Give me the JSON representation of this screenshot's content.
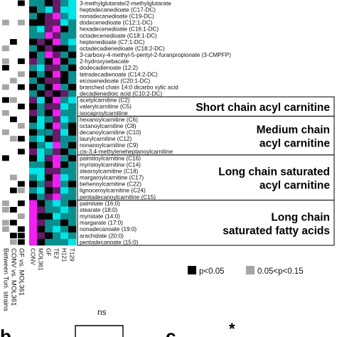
{
  "colors": {
    "cyan": "#00e5e5",
    "teal": "#0b8e8e",
    "black": "#050505",
    "purple": "#6a1a6a",
    "magenta": "#f21ff2",
    "sig_strong": "#000000",
    "sig_weak": "#a6a6a6"
  },
  "metabolites": [
    "3-methylglutarate/2-methylglutarate",
    "heptadecanedioate (C17-DC)",
    "nonadecanedioate (C19-DC)",
    "dodecenedioate (C12:1-DC)",
    "hexadecenedioate (C16:1-DC)",
    "octadecenedioate (C18:1-DC)",
    "heptenedioate (C7:1-DC)",
    "octadecadienedioate (C18:2-DC)",
    "3-carboxy-4-methyl-5-pentyl-2-furanpropionate (3-CMPFP)",
    "2-hydroxysebacate",
    "dodecadienoate (12:2)",
    "tetradecadienoate (C14:2-DC)",
    "eicosenedioate (C20:1-DC)",
    "branched chain 14:0 dicarbo xylic acid",
    "decadienedioic acid (C10:2-DC)",
    "acetylcarnitine (C2)",
    "valerylcarnitine (C5)",
    "isocaproylcarnitine",
    "hexanoylcarnitine (C6)",
    "octanoylcarnitine (C8)",
    "decanoylcarnitine (C10)",
    "laurylcarnitine (C12)",
    "nonanoylcarnitine (C9)",
    "cis-3,4-methyleneheptanoylcarnitine",
    "palmitoylcarnitine (C16)",
    "myristoylcarnitine (C14)",
    "stearoylcarnitine (C18)",
    "margaroylcarnitine (C17)",
    "behenoylcarnitine (C22)",
    "lignoceroylcarnitine (C24)",
    "pentadecanoylcarnitine (C15)",
    "palmitate (16:0)",
    "stearate (18:0)",
    "myristate (14:0)",
    "margarate (17:0)",
    "nonadecanoate (19:0)",
    "arachidate (20:0)",
    "pentadecanoate (15:0)"
  ],
  "groups": [
    {
      "line1": "Short chain acyl carnitine",
      "line2": "",
      "start": 15,
      "end": 17
    },
    {
      "line1": "Medium chain",
      "line2": "acyl carnitine",
      "start": 18,
      "end": 23
    },
    {
      "line1": "Long chain saturated",
      "line2": "acyl carnitine",
      "start": 24,
      "end": 30
    },
    {
      "line1": "Long chain",
      "line2": "saturated fatty acids",
      "start": 31,
      "end": 37
    }
  ],
  "strains": [
    "CONV",
    "MOL361",
    "GF",
    "TE2",
    "H121",
    "T129"
  ],
  "comparisons": [
    "Between Turi. strains",
    "CONV vs. MOL361",
    "GF vs. MOL361"
  ],
  "heatmap": [
    [
      1,
      1,
      2,
      3,
      1,
      0
    ],
    [
      2,
      1,
      0,
      3,
      0,
      0
    ],
    [
      1,
      2,
      3,
      4,
      1,
      0
    ],
    [
      2,
      2,
      3,
      3,
      0,
      1
    ],
    [
      1,
      0,
      3,
      4,
      2,
      1
    ],
    [
      1,
      1,
      4,
      3,
      1,
      1
    ],
    [
      2,
      3,
      2,
      4,
      1,
      0
    ],
    [
      1,
      2,
      3,
      2,
      2,
      1
    ],
    [
      2,
      1,
      4,
      3,
      1,
      2
    ],
    [
      3,
      1,
      2,
      4,
      2,
      1
    ],
    [
      1,
      0,
      3,
      3,
      1,
      2
    ],
    [
      2,
      1,
      2,
      4,
      2,
      1
    ],
    [
      1,
      2,
      3,
      3,
      2,
      1
    ],
    [
      2,
      1,
      2,
      4,
      1,
      2
    ],
    [
      1,
      2,
      3,
      2,
      3,
      1
    ],
    [
      3,
      0,
      2,
      4,
      1,
      0
    ],
    [
      2,
      1,
      3,
      3,
      0,
      1
    ],
    [
      3,
      1,
      2,
      4,
      1,
      1
    ],
    [
      2,
      0,
      1,
      3,
      0,
      1
    ],
    [
      1,
      0,
      2,
      4,
      1,
      2
    ],
    [
      2,
      1,
      1,
      3,
      0,
      2
    ],
    [
      1,
      0,
      2,
      3,
      1,
      1
    ],
    [
      2,
      1,
      0,
      4,
      1,
      2
    ],
    [
      3,
      0,
      1,
      3,
      2,
      1
    ],
    [
      2,
      0,
      3,
      4,
      1,
      2
    ],
    [
      1,
      1,
      2,
      4,
      2,
      1
    ],
    [
      0,
      0,
      3,
      3,
      1,
      1
    ],
    [
      1,
      0,
      2,
      4,
      0,
      1
    ],
    [
      2,
      1,
      3,
      4,
      1,
      2
    ],
    [
      1,
      0,
      2,
      3,
      0,
      1
    ],
    [
      2,
      1,
      3,
      4,
      1,
      1
    ],
    [
      4,
      2,
      1,
      0,
      1,
      2
    ],
    [
      4,
      3,
      1,
      1,
      0,
      1
    ],
    [
      4,
      2,
      2,
      0,
      1,
      1
    ],
    [
      4,
      3,
      1,
      1,
      2,
      1
    ],
    [
      4,
      2,
      1,
      0,
      1,
      2
    ],
    [
      4,
      3,
      2,
      1,
      0,
      1
    ],
    [
      4,
      2,
      1,
      1,
      1,
      0
    ]
  ],
  "significance": [
    [
      0,
      0,
      1
    ],
    [
      0,
      0,
      0
    ],
    [
      0,
      0,
      0
    ],
    [
      2,
      0,
      2
    ],
    [
      0,
      0,
      0
    ],
    [
      0,
      0,
      0
    ],
    [
      0,
      1,
      0
    ],
    [
      2,
      0,
      0
    ],
    [
      0,
      0,
      0
    ],
    [
      2,
      0,
      1
    ],
    [
      1,
      0,
      0
    ],
    [
      0,
      0,
      2
    ],
    [
      0,
      2,
      0
    ],
    [
      2,
      0,
      1
    ],
    [
      0,
      0,
      0
    ],
    [
      1,
      2,
      0
    ],
    [
      0,
      0,
      1
    ],
    [
      2,
      0,
      0
    ],
    [
      0,
      1,
      0
    ],
    [
      0,
      0,
      2
    ],
    [
      2,
      0,
      0
    ],
    [
      0,
      2,
      1
    ],
    [
      0,
      0,
      0
    ],
    [
      0,
      0,
      1
    ],
    [
      1,
      0,
      0
    ],
    [
      0,
      0,
      0
    ],
    [
      0,
      0,
      0
    ],
    [
      0,
      2,
      0
    ],
    [
      0,
      0,
      1
    ],
    [
      0,
      1,
      2
    ],
    [
      0,
      0,
      0
    ],
    [
      2,
      0,
      1
    ],
    [
      2,
      1,
      0
    ],
    [
      0,
      0,
      2
    ],
    [
      2,
      1,
      0
    ],
    [
      2,
      0,
      1
    ],
    [
      0,
      1,
      1
    ],
    [
      0,
      2,
      1
    ]
  ],
  "legend": {
    "strong_label": "p<0.05",
    "weak_label": "0.05<p<0.15"
  },
  "panel_b": {
    "letter": "b",
    "sig": "ns"
  },
  "panel_c": {
    "letter": "c",
    "sig": "*"
  }
}
